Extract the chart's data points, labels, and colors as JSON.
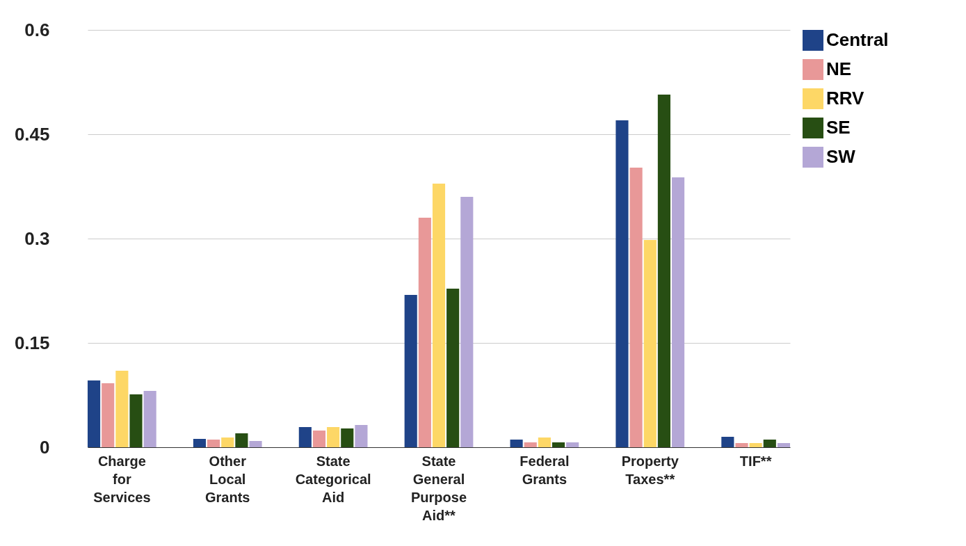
{
  "chart_data": {
    "type": "bar",
    "categories": [
      "Charge for Services",
      "Other Local Grants",
      "State Categorical Aid",
      "State General Purpose Aid**",
      "Federal Grants",
      "Property Taxes**",
      "TIF**"
    ],
    "series": [
      {
        "name": "Central",
        "color": "#1f4388",
        "values": [
          0.096,
          0.012,
          0.029,
          0.219,
          0.011,
          0.47,
          0.015
        ]
      },
      {
        "name": "NE",
        "color": "#e89898",
        "values": [
          0.092,
          0.011,
          0.024,
          0.33,
          0.007,
          0.402,
          0.006
        ]
      },
      {
        "name": "RRV",
        "color": "#fdd766",
        "values": [
          0.11,
          0.014,
          0.029,
          0.379,
          0.014,
          0.298,
          0.006
        ]
      },
      {
        "name": "SE",
        "color": "#274e13",
        "values": [
          0.076,
          0.02,
          0.027,
          0.228,
          0.007,
          0.507,
          0.011
        ]
      },
      {
        "name": "SW",
        "color": "#b4a7d6",
        "values": [
          0.081,
          0.009,
          0.032,
          0.36,
          0.007,
          0.388,
          0.006
        ]
      }
    ],
    "ylim": [
      0,
      0.6
    ],
    "yticks": [
      0,
      0.15,
      0.3,
      0.45,
      0.6
    ],
    "grid": "y",
    "legend": "top right"
  }
}
